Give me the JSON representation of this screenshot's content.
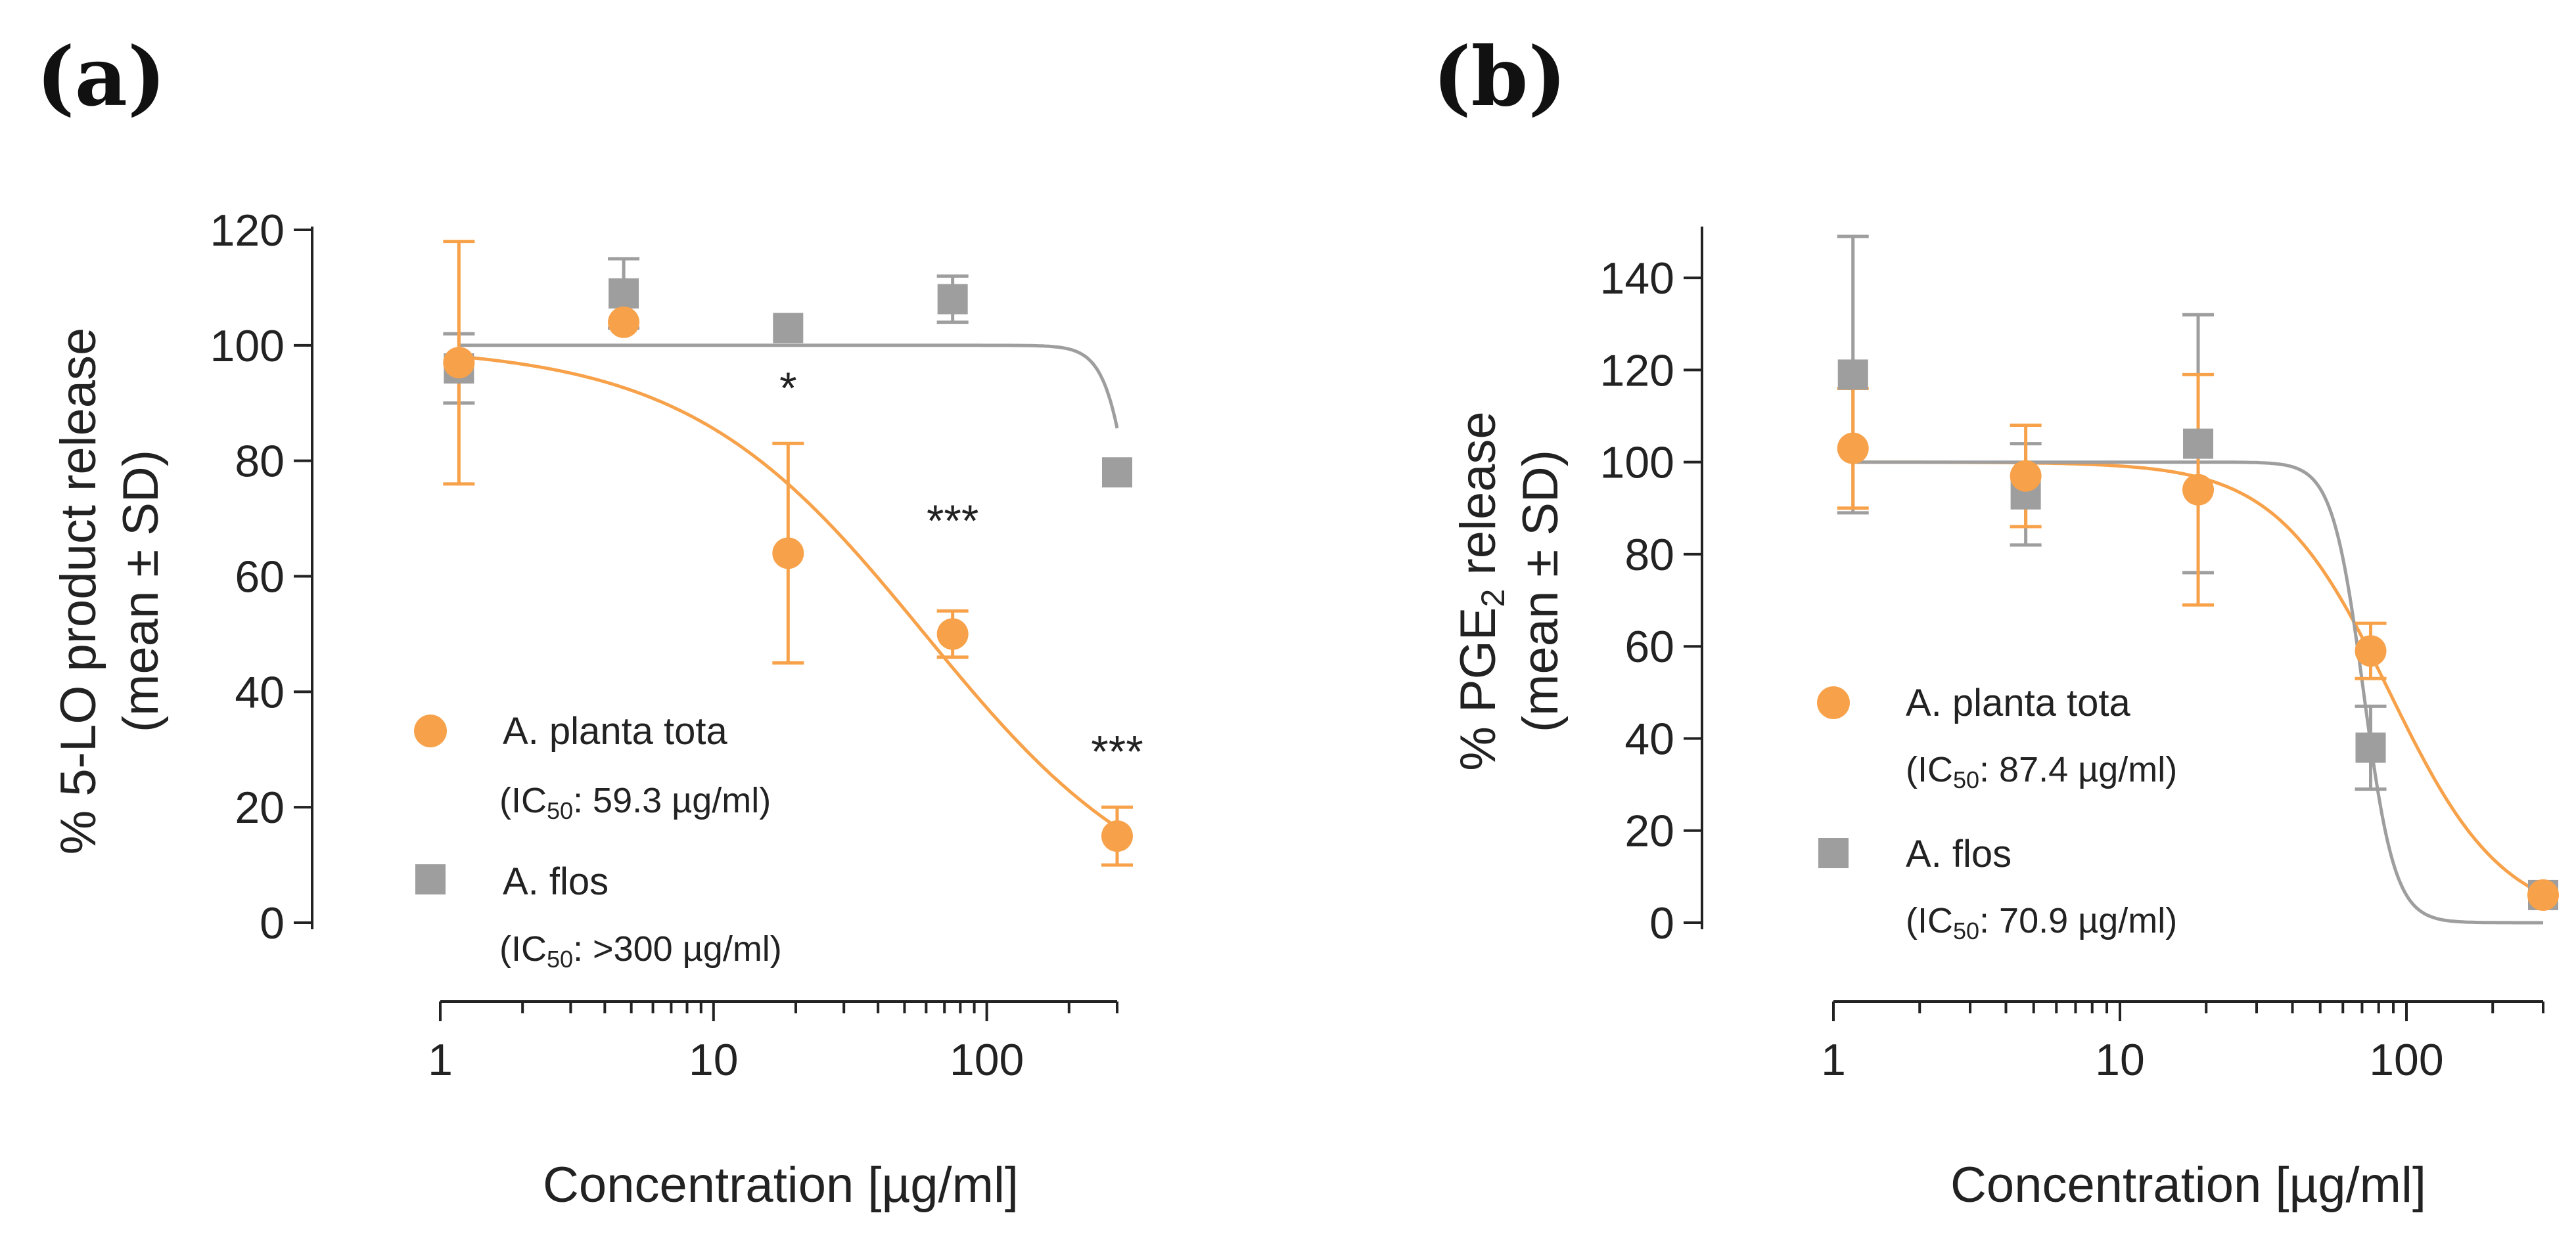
{
  "colors": {
    "orange": "#F7A24A",
    "gray": "#9E9E9E",
    "axis": "#222222"
  },
  "chart_data": [
    {
      "type": "scatter",
      "panel_label": "(a)",
      "ylabel_line1": "% 5-LO product release",
      "ylabel_line2": "(mean ± SD)",
      "ylabel_sub": "",
      "ylabel_line1_end": "",
      "xlabel": "Concentration [µg/ml]",
      "xscale": "log",
      "xlim": [
        1,
        300
      ],
      "ylim": [
        0,
        120
      ],
      "yticks": [
        0,
        20,
        40,
        60,
        80,
        100,
        120
      ],
      "xticks": [
        1,
        10,
        100
      ],
      "xtick_labels": [
        "1",
        "10",
        "100"
      ],
      "series": [
        {
          "name": "A. planta tota",
          "ic50_text": "(IC",
          "ic50_sub": "50",
          "ic50_value": ": 59.3 µg/ml)",
          "color": "orange",
          "marker": "circle",
          "x": [
            1.17,
            4.69,
            18.75,
            75,
            300
          ],
          "y": [
            97,
            104,
            64,
            50,
            15
          ],
          "err": [
            21,
            0,
            19,
            4,
            5
          ],
          "fit": {
            "top": 100,
            "bottom": 0,
            "ec50": 59.3,
            "hill": 1.0
          }
        },
        {
          "name": "A. flos",
          "ic50_text": "(IC",
          "ic50_sub": "50",
          "ic50_value": ": >300 µg/ml)",
          "color": "gray",
          "marker": "square",
          "x": [
            1.17,
            4.69,
            18.75,
            75,
            300
          ],
          "y": [
            96,
            109,
            103,
            108,
            78
          ],
          "err": [
            6,
            6,
            0,
            4,
            0
          ],
          "fit": {
            "top": 100,
            "bottom": 0,
            "ec50": 375,
            "hill": 8.0
          }
        }
      ],
      "annotations": [
        {
          "text": "*",
          "x": 18.75,
          "y": 90
        },
        {
          "text": "***",
          "x": 75,
          "y": 67
        },
        {
          "text": "***",
          "x": 300,
          "y": 27
        }
      ],
      "legend_position": "lower-left"
    },
    {
      "type": "scatter",
      "panel_label": "(b)",
      "ylabel_line1": "% PGE",
      "ylabel_sub": "2",
      "ylabel_line1_end": " release",
      "ylabel_line2": "(mean ± SD)",
      "xlabel": "Concentration [µg/ml]",
      "xscale": "log",
      "xlim": [
        1,
        300
      ],
      "ylim": [
        0,
        150
      ],
      "yticks": [
        0,
        20,
        40,
        60,
        80,
        100,
        120,
        140
      ],
      "xticks": [
        1,
        10,
        100
      ],
      "xtick_labels": [
        "1",
        "10",
        "100"
      ],
      "series": [
        {
          "name": "A. planta tota",
          "ic50_text": "(IC",
          "ic50_sub": "50",
          "ic50_value": ": 87.4 µg/ml)",
          "color": "orange",
          "marker": "circle",
          "x": [
            1.17,
            4.69,
            18.75,
            75,
            300
          ],
          "y": [
            103,
            97,
            94,
            59,
            6
          ],
          "err": [
            13,
            11,
            25,
            6,
            0
          ],
          "fit": {
            "top": 100,
            "bottom": 0,
            "ec50": 87.4,
            "hill": 2.2
          }
        },
        {
          "name": "A. flos",
          "ic50_text": "(IC",
          "ic50_sub": "50",
          "ic50_value": ": 70.9 µg/ml)",
          "color": "gray",
          "marker": "square",
          "x": [
            1.17,
            4.69,
            18.75,
            75,
            300
          ],
          "y": [
            119,
            93,
            104,
            38,
            6
          ],
          "err": [
            30,
            11,
            28,
            9,
            0
          ],
          "fit": {
            "top": 100,
            "bottom": 0,
            "ec50": 70.9,
            "hill": 8.0
          }
        }
      ],
      "annotations": [],
      "legend_position": "lower-left"
    }
  ]
}
